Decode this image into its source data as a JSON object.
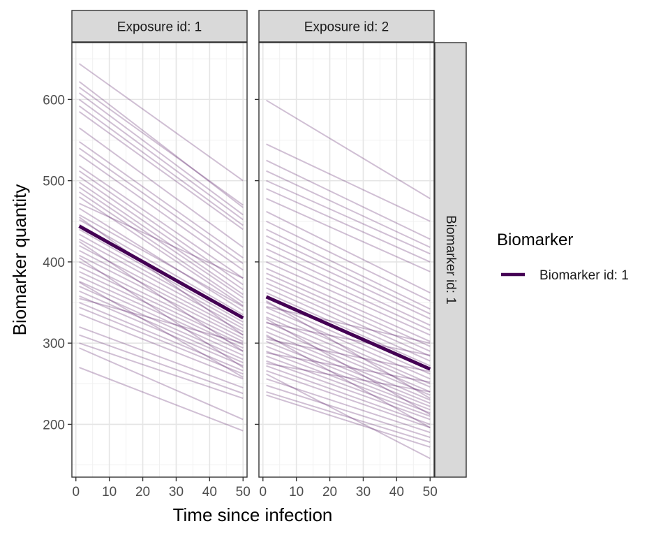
{
  "chart_data": {
    "type": "line",
    "title": "",
    "xlabel": "Time since infection",
    "ylabel": "Biomarker quantity",
    "xlim": [
      -1.2,
      51.2
    ],
    "ylim": [
      135,
      670
    ],
    "x_ticks": [
      0,
      10,
      20,
      30,
      40,
      50
    ],
    "y_ticks": [
      200,
      300,
      400,
      500,
      600
    ],
    "grid": true,
    "legend": {
      "title": "Biomarker",
      "position": "right",
      "entries": [
        {
          "label": "Biomarker id: 1",
          "color": "#440154"
        }
      ]
    },
    "strip_right": "Biomarker id: 1",
    "line_color": "#440154",
    "individual_line_opacity": 0.25,
    "panels": [
      {
        "strip": "Exposure id: 1",
        "mean": {
          "name": "Biomarker id: 1",
          "x": [
            1,
            50
          ],
          "y": [
            444,
            331
          ]
        },
        "individuals": [
          [
            644,
            500
          ],
          [
            622,
            467
          ],
          [
            615,
            470
          ],
          [
            608,
            458
          ],
          [
            600,
            452
          ],
          [
            592,
            445
          ],
          [
            585,
            440
          ],
          [
            565,
            418
          ],
          [
            548,
            405
          ],
          [
            540,
            398
          ],
          [
            532,
            390
          ],
          [
            518,
            380
          ],
          [
            512,
            372
          ],
          [
            505,
            366
          ],
          [
            498,
            360
          ],
          [
            492,
            356
          ],
          [
            486,
            350
          ],
          [
            480,
            346
          ],
          [
            472,
            380
          ],
          [
            466,
            340
          ],
          [
            458,
            345
          ],
          [
            452,
            335
          ],
          [
            446,
            330
          ],
          [
            440,
            326
          ],
          [
            434,
            322
          ],
          [
            428,
            318
          ],
          [
            420,
            314
          ],
          [
            414,
            310
          ],
          [
            408,
            306
          ],
          [
            400,
            302
          ],
          [
            394,
            298
          ],
          [
            388,
            294
          ],
          [
            382,
            290
          ],
          [
            376,
            285
          ],
          [
            370,
            280
          ],
          [
            364,
            276
          ],
          [
            358,
            272
          ],
          [
            350,
            266
          ],
          [
            344,
            262
          ],
          [
            336,
            256
          ],
          [
            320,
            245
          ],
          [
            310,
            238
          ],
          [
            300,
            232
          ],
          [
            294,
            206
          ],
          [
            270,
            192
          ],
          [
            455,
            310
          ],
          [
            425,
            290
          ],
          [
            405,
            270
          ],
          [
            375,
            258
          ],
          [
            355,
            300
          ]
        ]
      },
      {
        "strip": "Exposure id: 2",
        "mean": {
          "name": "Biomarker id: 1",
          "x": [
            1,
            50
          ],
          "y": [
            357,
            268
          ]
        },
        "individuals": [
          [
            599,
            478
          ],
          [
            545,
            450
          ],
          [
            525,
            428
          ],
          [
            512,
            418
          ],
          [
            500,
            410
          ],
          [
            490,
            400
          ],
          [
            478,
            388
          ],
          [
            462,
            362
          ],
          [
            450,
            352
          ],
          [
            440,
            342
          ],
          [
            432,
            336
          ],
          [
            424,
            330
          ],
          [
            416,
            322
          ],
          [
            408,
            316
          ],
          [
            400,
            310
          ],
          [
            392,
            302
          ],
          [
            386,
            296
          ],
          [
            380,
            290
          ],
          [
            374,
            284
          ],
          [
            368,
            278
          ],
          [
            362,
            272
          ],
          [
            356,
            268
          ],
          [
            350,
            262
          ],
          [
            344,
            256
          ],
          [
            338,
            250
          ],
          [
            332,
            246
          ],
          [
            326,
            240
          ],
          [
            320,
            236
          ],
          [
            314,
            230
          ],
          [
            308,
            226
          ],
          [
            302,
            222
          ],
          [
            296,
            218
          ],
          [
            290,
            214
          ],
          [
            284,
            210
          ],
          [
            278,
            206
          ],
          [
            272,
            200
          ],
          [
            266,
            196
          ],
          [
            256,
            190
          ],
          [
            248,
            184
          ],
          [
            240,
            178
          ],
          [
            236,
            172
          ],
          [
            262,
            158
          ],
          [
            345,
            300
          ],
          [
            325,
            285
          ],
          [
            305,
            265
          ],
          [
            288,
            252
          ],
          [
            275,
            240
          ],
          [
            352,
            232
          ],
          [
            330,
            212
          ],
          [
            310,
            196
          ]
        ]
      }
    ]
  }
}
